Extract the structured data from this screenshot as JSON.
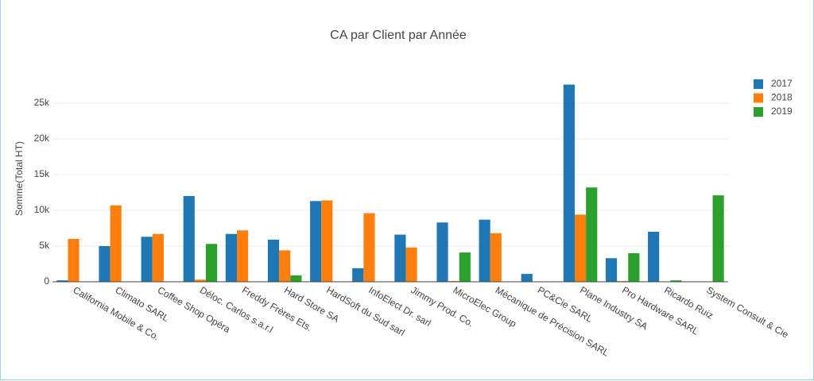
{
  "chart_data": {
    "type": "bar",
    "title": "CA par Client par Année",
    "y_label": "Somme(Total HT)",
    "categories": [
      "California Mobile & Co.",
      "Climato SARL",
      "Coffee Shop Opéra",
      "Déloc. Carlos s.a.r.l",
      "Freddy Frères Ets.",
      "Hard Store SA",
      "HardSoft du Sud sarl",
      "InfoElect Dr. sarl",
      "Jimmy Prod. Co.",
      "MicroElec Group",
      "Mécanique de Précision SARL",
      "PC&Cie SARL",
      "Plane Industry SA",
      "Pro Hardware SARL",
      "Ricardo Ruiz",
      "System Consult & Cie"
    ],
    "series": [
      {
        "name": "2017",
        "color": "#1f77b4",
        "values": [
          200,
          5000,
          6300,
          12000,
          6700,
          5900,
          11300,
          1900,
          6600,
          8300,
          8700,
          1100,
          27600,
          3300,
          7000,
          null
        ]
      },
      {
        "name": "2018",
        "color": "#ff7f0e",
        "values": [
          6000,
          10700,
          6700,
          300,
          7200,
          4400,
          11400,
          9600,
          4800,
          100,
          6800,
          null,
          9400,
          100,
          null,
          null
        ]
      },
      {
        "name": "2019",
        "color": "#2ca02c",
        "values": [
          null,
          null,
          null,
          5300,
          null,
          900,
          null,
          null,
          null,
          4100,
          null,
          null,
          13200,
          4000,
          200,
          12100
        ]
      }
    ],
    "ylim": [
      0,
      29000
    ],
    "yticks": [
      0,
      {
        "value": 5000,
        "label": "5k"
      },
      {
        "value": 10000,
        "label": "10k"
      },
      {
        "value": 15000,
        "label": "15k"
      },
      {
        "value": 20000,
        "label": "20k"
      },
      {
        "value": 25000,
        "label": "25k"
      }
    ],
    "grid": true
  }
}
